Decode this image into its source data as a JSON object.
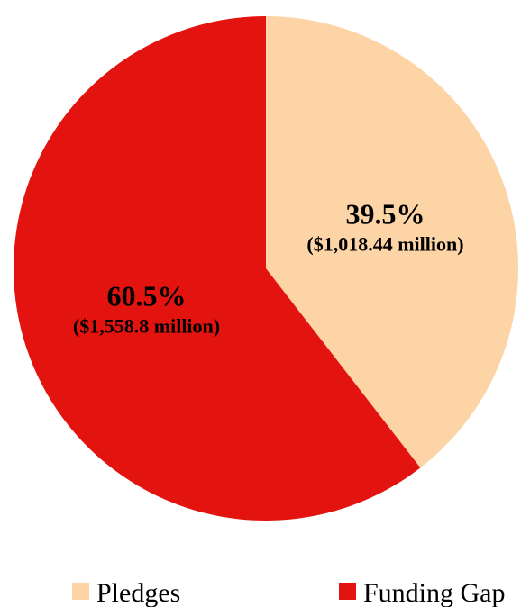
{
  "chart_data": {
    "type": "pie",
    "title": "",
    "slices": [
      {
        "name": "Pledges",
        "value": 1018.44,
        "percent_label": "39.5%",
        "amount_label": "($1,018.44 million)",
        "color": "#fdd4a6"
      },
      {
        "name": "Funding Gap",
        "value": 1558.8,
        "percent_label": "60.5%",
        "amount_label": "($1,558.8 million)",
        "color": "#e3140f"
      }
    ],
    "start_angle_deg": 0,
    "direction": "clockwise",
    "legend": {
      "placement": "bottom",
      "items": [
        "Pledges",
        "Funding Gap"
      ]
    }
  }
}
